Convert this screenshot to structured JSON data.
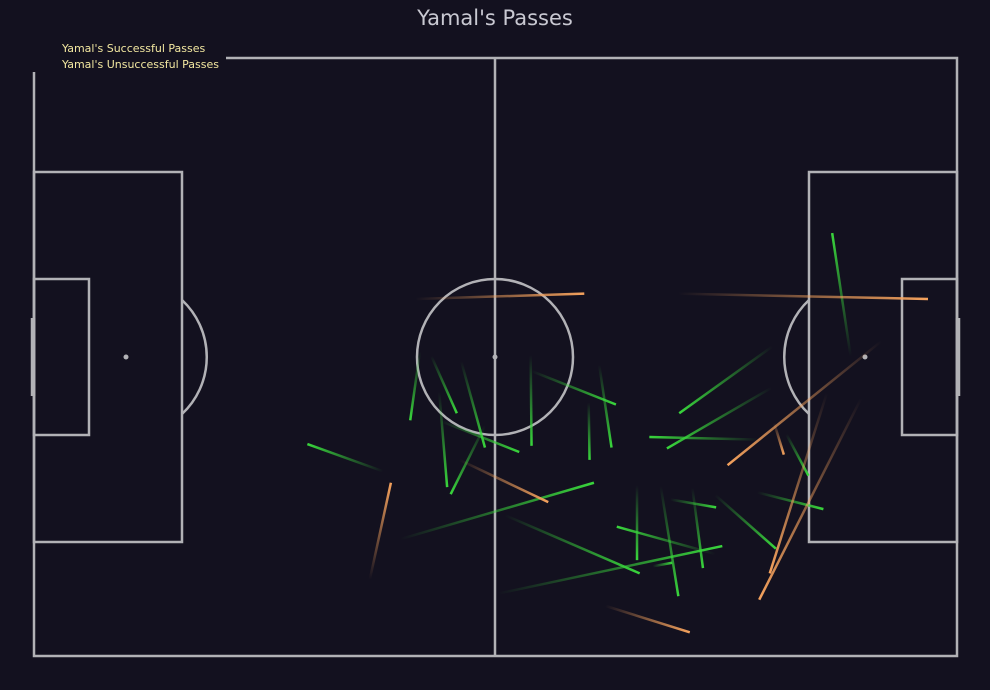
{
  "chart_data": {
    "type": "pass-map",
    "title": "Yamal's Passes",
    "pitch": {
      "length": 105,
      "width": 68,
      "grid": false
    },
    "legend": {
      "placement": "top-left",
      "entries": [
        "Yamal's Successful Passes",
        "Yamal's Unsuccessful Passes"
      ]
    },
    "colors": {
      "background": "#13111f",
      "pitch_lines": "#b2b2b6",
      "successful": "#39d63c",
      "unsuccessful": "#f5a25d",
      "title": "#c9c9d2",
      "legend_text": "#f2e7a0"
    },
    "series": [
      {
        "name": "Yamal's Successful Passes",
        "outcome": "successful",
        "passes": [
          {
            "start": [
              39.7,
              21.0
            ],
            "end": [
              31.1,
              24.1
            ]
          },
          {
            "start": [
              43.9,
              34.6
            ],
            "end": [
              42.8,
              26.8
            ]
          },
          {
            "start": [
              45.2,
              34.1
            ],
            "end": [
              48.1,
              27.6
            ]
          },
          {
            "start": [
              48.6,
              33.5
            ],
            "end": [
              51.3,
              23.7
            ]
          },
          {
            "start": [
              46.3,
              26.7
            ],
            "end": [
              55.2,
              23.2
            ]
          },
          {
            "start": [
              51.3,
              26.2
            ],
            "end": [
              47.4,
              18.4
            ]
          },
          {
            "start": [
              46.1,
              30.0
            ],
            "end": [
              47.0,
              19.2
            ]
          },
          {
            "start": [
              56.6,
              32.4
            ],
            "end": [
              66.2,
              28.6
            ]
          },
          {
            "start": [
              56.5,
              34.2
            ],
            "end": [
              56.6,
              23.9
            ]
          },
          {
            "start": [
              64.3,
              33.1
            ],
            "end": [
              65.7,
              23.7
            ]
          },
          {
            "start": [
              63.1,
              28.8
            ],
            "end": [
              63.2,
              22.3
            ]
          },
          {
            "start": [
              41.7,
              13.3
            ],
            "end": [
              63.7,
              19.7
            ]
          },
          {
            "start": [
              52.8,
              7.1
            ],
            "end": [
              78.3,
              12.5
            ]
          },
          {
            "start": [
              53.6,
              16.0
            ],
            "end": [
              68.9,
              9.4
            ]
          },
          {
            "start": [
              68.6,
              19.4
            ],
            "end": [
              68.6,
              10.9
            ]
          },
          {
            "start": [
              71.3,
              19.3
            ],
            "end": [
              73.3,
              6.8
            ]
          },
          {
            "start": [
              74.9,
              19.1
            ],
            "end": [
              76.1,
              10.0
            ]
          },
          {
            "start": [
              72.4,
              17.8
            ],
            "end": [
              77.6,
              16.9
            ]
          },
          {
            "start": [
              77.5,
              18.3
            ],
            "end": [
              84.4,
              12.2
            ]
          },
          {
            "start": [
              82.3,
              18.6
            ],
            "end": [
              89.8,
              16.7
            ]
          },
          {
            "start": [
              84.0,
              35.2
            ],
            "end": [
              73.4,
              27.6
            ]
          },
          {
            "start": [
              82.4,
              24.6
            ],
            "end": [
              70.0,
              24.9
            ]
          },
          {
            "start": [
              83.9,
              30.5
            ],
            "end": [
              72.0,
              23.6
            ]
          },
          {
            "start": [
              85.6,
              25.2
            ],
            "end": [
              88.1,
              20.5
            ]
          },
          {
            "start": [
              92.9,
              34.1
            ],
            "end": [
              90.8,
              48.1
            ]
          },
          {
            "start": [
              77.5,
              11.6
            ],
            "end": [
              66.3,
              14.7
            ]
          },
          {
            "start": [
              70.4,
              10.2
            ],
            "end": [
              72.6,
              10.6
            ]
          }
        ]
      },
      {
        "name": "Yamal's Unsuccessful Passes",
        "outcome": "unsuccessful",
        "passes": [
          {
            "start": [
              43.4,
              40.6
            ],
            "end": [
              62.6,
              41.2
            ]
          },
          {
            "start": [
              73.3,
              41.2
            ],
            "end": [
              101.7,
              40.6
            ]
          },
          {
            "start": [
              96.4,
              35.8
            ],
            "end": [
              78.9,
              21.7
            ]
          },
          {
            "start": [
              84.2,
              26.5
            ],
            "end": [
              85.3,
              22.9
            ]
          },
          {
            "start": [
              90.2,
              29.9
            ],
            "end": [
              83.7,
              9.4
            ]
          },
          {
            "start": [
              94.1,
              29.3
            ],
            "end": [
              82.5,
              6.4
            ]
          },
          {
            "start": [
              48.4,
              22.3
            ],
            "end": [
              58.5,
              17.5
            ]
          },
          {
            "start": [
              38.2,
              8.7
            ],
            "end": [
              40.6,
              19.7
            ]
          },
          {
            "start": [
              65.0,
              5.7
            ],
            "end": [
              74.6,
              2.7
            ]
          }
        ]
      }
    ]
  }
}
